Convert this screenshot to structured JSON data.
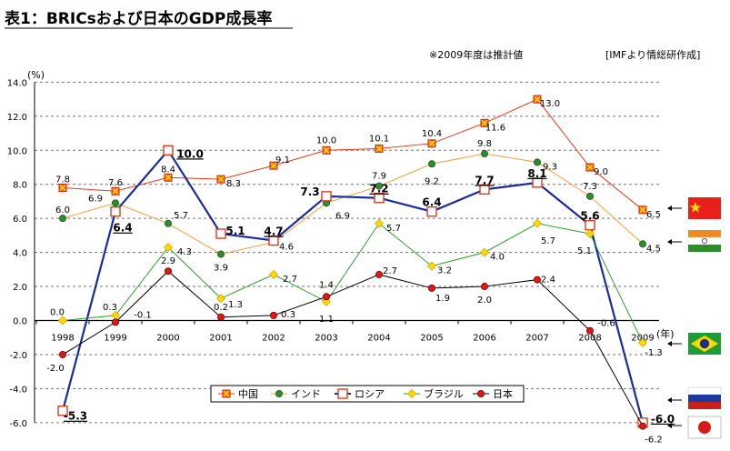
{
  "chart_data": {
    "type": "line",
    "title": "表1：BRICsおよび日本のGDP成長率",
    "note": "※2009年度は推計値",
    "source": "[IMFより情総研作成]",
    "ylabel": "(%)",
    "xlabel": "(年)",
    "ylim": [
      -6.0,
      14.0
    ],
    "yticks": [
      "14.0",
      "12.0",
      "10.0",
      "8.0",
      "6.0",
      "4.0",
      "2.0",
      "0.0",
      "-2.0",
      "-4.0",
      "-6.0"
    ],
    "x": [
      "1998",
      "1999",
      "2000",
      "2001",
      "2002",
      "2003",
      "2004",
      "2005",
      "2006",
      "2007",
      "2008",
      "2009"
    ],
    "series": [
      {
        "name": "中国",
        "color": "#e03c1c",
        "marker": "square-x",
        "values": [
          7.8,
          7.6,
          8.4,
          8.3,
          9.1,
          10.0,
          10.1,
          10.4,
          11.6,
          13.0,
          9.0,
          6.5
        ],
        "labels": [
          "7.8",
          "7.6",
          "8.4",
          "8.3",
          "9.1",
          "10.0",
          "10.1",
          "10.4",
          "11.6",
          "13.0",
          "9.0",
          "6.5"
        ]
      },
      {
        "name": "インド",
        "color": "#f0a040",
        "marker": "circle-green",
        "values": [
          6.0,
          6.9,
          5.7,
          3.9,
          4.6,
          6.9,
          7.9,
          9.2,
          9.8,
          9.3,
          7.3,
          4.5
        ],
        "labels": [
          "6.0",
          "6.9",
          "5.7",
          "3.9",
          "4.6",
          "6.9",
          "7.9",
          "9.2",
          "9.8",
          "9.3",
          "7.3",
          "4.5"
        ]
      },
      {
        "name": "ロシア",
        "color": "#1c2a9c",
        "marker": "square-open",
        "values": [
          -5.3,
          6.4,
          10.0,
          5.1,
          4.7,
          7.3,
          7.2,
          6.4,
          7.7,
          8.1,
          5.6,
          -6.0
        ],
        "labels": [
          "-5.3",
          "6.4",
          "10.0",
          "5.1",
          "4.7",
          "7.3",
          "7.2",
          "6.4",
          "7.7",
          "8.1",
          "5.6",
          "-6.0"
        ]
      },
      {
        "name": "ブラジル",
        "color": "#2e9c2e",
        "marker": "diamond-yellow",
        "values": [
          0.0,
          0.3,
          4.3,
          1.3,
          2.7,
          1.1,
          5.7,
          3.2,
          4.0,
          5.7,
          5.1,
          -1.3
        ],
        "labels": [
          "0.0",
          "0.3",
          "4.3",
          "1.3",
          "2.7",
          "1.1",
          "5.7",
          "3.2",
          "4.0",
          "5.7",
          "5.1",
          "-1.3"
        ]
      },
      {
        "name": "日本",
        "color": "#000000",
        "marker": "circle-red",
        "values": [
          -2.0,
          -0.1,
          2.9,
          0.2,
          0.3,
          1.4,
          2.7,
          1.9,
          2.0,
          2.4,
          -0.6,
          -6.2
        ],
        "labels": [
          "-2.0",
          "-0.1",
          "2.9",
          "0.2",
          "0.3",
          "1.4",
          "2.7",
          "1.9",
          "2.0",
          "2.4",
          "-0.6",
          "-6.2"
        ]
      }
    ],
    "flags": [
      {
        "country": "中国",
        "value": 6.5
      },
      {
        "country": "インド",
        "value": 4.5
      },
      {
        "country": "ブラジル",
        "value": -1.3
      },
      {
        "country": "ロシア",
        "value": -6.0
      },
      {
        "country": "日本",
        "value": -6.2
      }
    ]
  }
}
